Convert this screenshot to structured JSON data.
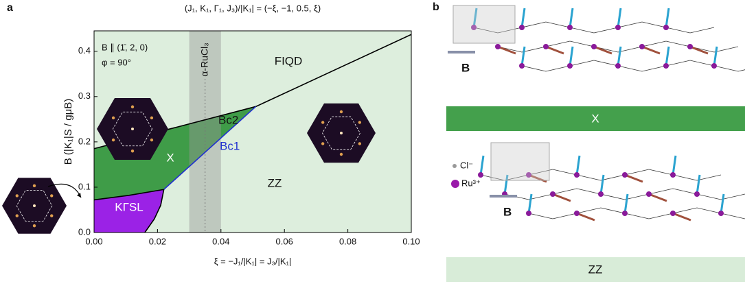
{
  "chart_data": {
    "type": "phase-diagram",
    "panel_label": "a",
    "title": "(J₁, K₁, Γ₁, J₃)/|K₁| = (−ξ, −1, 0.5, ξ)",
    "x_label": "ξ = −J₁/|K₁| = J₃/|K₁|",
    "y_label": "B (|K₁|S / gμB)",
    "annotations": [
      "B ∥ (1̄, 2, 0)",
      "φ = 90°"
    ],
    "xlim": [
      0,
      0.1
    ],
    "ylim": [
      0,
      0.445
    ],
    "xticks": [
      {
        "value": 0,
        "label": "0.00"
      },
      {
        "value": 0.02,
        "label": "0.02"
      },
      {
        "value": 0.04,
        "label": "0.04"
      },
      {
        "value": 0.06,
        "label": "0.06"
      },
      {
        "value": 0.08,
        "label": "0.08"
      },
      {
        "value": 0.1,
        "label": "0.10"
      }
    ],
    "yticks": [
      {
        "value": 0,
        "label": "0.0"
      },
      {
        "value": 0.1,
        "label": "0.1"
      },
      {
        "value": 0.2,
        "label": "0.2"
      },
      {
        "value": 0.3,
        "label": "0.3"
      },
      {
        "value": 0.4,
        "label": "0.4"
      }
    ],
    "background_color": "#ddeedd",
    "boundaries": [
      {
        "name": "Bc2",
        "color": "#000000",
        "x": [
          0,
          0.051,
          0.1
        ],
        "y": [
          0.185,
          0.278,
          0.437
        ]
      },
      {
        "name": "Bc1",
        "color": "#1f2fd0",
        "x": [
          0.022,
          0.051
        ],
        "y": [
          0.095,
          0.278
        ]
      },
      {
        "color": "#000000",
        "x": [
          0,
          0.011,
          0.022
        ],
        "y": [
          0.072,
          0.082,
          0.095
        ]
      },
      {
        "color": "#000000",
        "x": [
          0.022,
          0.021,
          0.019,
          0.016
        ],
        "y": [
          0.095,
          0.06,
          0.03,
          0
        ]
      }
    ],
    "regions": [
      {
        "label": "FIQD"
      },
      {
        "label": "X",
        "color": "#3f9c48"
      },
      {
        "label": "ZZ"
      },
      {
        "label": "KΓSL",
        "color": "#9b22e6"
      }
    ],
    "highlight": {
      "label": "α-RuCl₃",
      "xlim": [
        0.03,
        0.04
      ],
      "x": 0.035
    }
  },
  "panel_b": {
    "label": "b",
    "structures": [
      {
        "field_label": "B",
        "phase": "X"
      },
      {
        "field_label": "B",
        "phase": "ZZ"
      }
    ],
    "legend": [
      "Cl⁻",
      "Ru³⁺"
    ]
  }
}
